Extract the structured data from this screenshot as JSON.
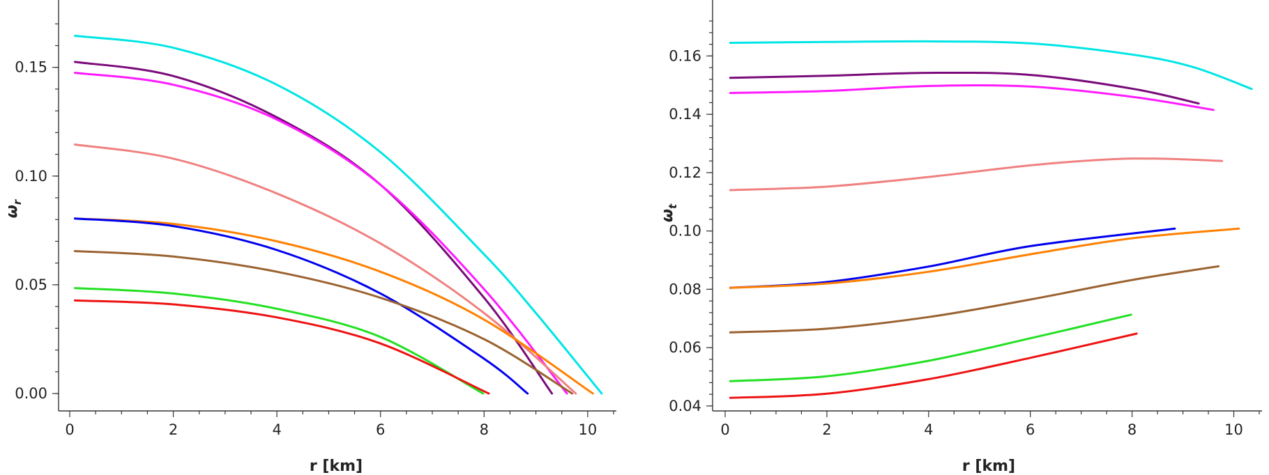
{
  "chart_data": [
    {
      "type": "line",
      "xlabel": "r [km]",
      "ylabel": "ω_r",
      "ylabel_main": "ω",
      "ylabel_sub": "r",
      "xlim": [
        0,
        10.5
      ],
      "ylim": [
        -0.008,
        0.172
      ],
      "xticks": [
        0,
        2,
        4,
        6,
        8,
        10
      ],
      "xtick_labels": [
        "0",
        "2",
        "4",
        "6",
        "8",
        "10"
      ],
      "yticks": [
        0.0,
        0.05,
        0.1,
        0.15
      ],
      "ytick_labels": [
        "0.00",
        "0.05",
        "0.10",
        "0.15"
      ],
      "grid": false,
      "legend": "none",
      "series": [
        {
          "color": "#00e5e5",
          "x": [
            0.1,
            2,
            4,
            6,
            8,
            9,
            10.27
          ],
          "y": [
            0.1645,
            0.159,
            0.142,
            0.111,
            0.064,
            0.037,
            0.0
          ]
        },
        {
          "color": "#7a0a7a",
          "x": [
            0.1,
            2,
            4,
            6,
            8,
            9.31
          ],
          "y": [
            0.1525,
            0.146,
            0.127,
            0.096,
            0.044,
            0.0
          ]
        },
        {
          "color": "#ff1aff",
          "x": [
            0.1,
            2,
            4,
            6,
            8,
            9.6
          ],
          "y": [
            0.1475,
            0.142,
            0.126,
            0.096,
            0.048,
            0.0
          ]
        },
        {
          "color": "#f08080",
          "x": [
            0.1,
            2,
            4,
            6,
            8,
            9.77
          ],
          "y": [
            0.1145,
            0.108,
            0.092,
            0.069,
            0.037,
            0.0
          ]
        },
        {
          "color": "#ff8000",
          "x": [
            0.1,
            2,
            4,
            6,
            8,
            10.1
          ],
          "y": [
            0.0805,
            0.078,
            0.07,
            0.056,
            0.034,
            0.0
          ]
        },
        {
          "color": "#0000ee",
          "x": [
            0.1,
            2,
            4,
            6,
            8,
            8.84
          ],
          "y": [
            0.0805,
            0.077,
            0.066,
            0.046,
            0.016,
            0.0
          ]
        },
        {
          "color": "#9a6230",
          "x": [
            0.1,
            2,
            4,
            6,
            8,
            9.7
          ],
          "y": [
            0.0655,
            0.063,
            0.056,
            0.044,
            0.025,
            0.0
          ]
        },
        {
          "color": "#22e022",
          "x": [
            0.1,
            2,
            4,
            6,
            7.98
          ],
          "y": [
            0.0485,
            0.046,
            0.039,
            0.026,
            0.0
          ]
        },
        {
          "color": "#ee1111",
          "x": [
            0.1,
            2,
            4,
            6,
            8.09
          ],
          "y": [
            0.0428,
            0.041,
            0.035,
            0.023,
            0.0
          ]
        }
      ]
    },
    {
      "type": "line",
      "xlabel": "r [km]",
      "ylabel": "ω_t",
      "ylabel_main": "ω",
      "ylabel_sub": "t",
      "xlim": [
        0,
        10.5
      ],
      "ylim": [
        0.0383,
        0.1725
      ],
      "xticks": [
        0,
        2,
        4,
        6,
        8,
        10
      ],
      "xtick_labels": [
        "0",
        "2",
        "4",
        "6",
        "8",
        "10"
      ],
      "yticks": [
        0.04,
        0.06,
        0.08,
        0.1,
        0.12,
        0.14,
        0.16
      ],
      "ytick_labels": [
        "0.04",
        "0.06",
        "0.08",
        "0.10",
        "0.12",
        "0.14",
        "0.16"
      ],
      "grid": false,
      "legend": "none",
      "series": [
        {
          "color": "#00e5e5",
          "x": [
            0.1,
            2,
            4,
            6,
            8,
            9.2,
            10.35
          ],
          "y": [
            0.1645,
            0.1648,
            0.165,
            0.1643,
            0.1605,
            0.1562,
            0.1487
          ]
        },
        {
          "color": "#7a0a7a",
          "x": [
            0.1,
            2,
            4,
            6,
            8,
            9.31
          ],
          "y": [
            0.1525,
            0.1532,
            0.1542,
            0.1535,
            0.1488,
            0.1437
          ]
        },
        {
          "color": "#ff1aff",
          "x": [
            0.1,
            2,
            4,
            6,
            8,
            9.6
          ],
          "y": [
            0.1473,
            0.148,
            0.1497,
            0.1495,
            0.146,
            0.1415
          ]
        },
        {
          "color": "#f08080",
          "x": [
            0.1,
            2,
            4,
            6,
            7.5,
            8.5,
            9.77
          ],
          "y": [
            0.114,
            0.1152,
            0.1185,
            0.1225,
            0.1245,
            0.1248,
            0.124
          ]
        },
        {
          "color": "#0000ee",
          "x": [
            0.1,
            2,
            4,
            6,
            8.84
          ],
          "y": [
            0.0805,
            0.0825,
            0.0878,
            0.0948,
            0.1008
          ]
        },
        {
          "color": "#ff8000",
          "x": [
            0.1,
            2,
            4,
            6,
            8,
            10.1
          ],
          "y": [
            0.0805,
            0.082,
            0.086,
            0.092,
            0.0975,
            0.1008
          ]
        },
        {
          "color": "#9a6230",
          "x": [
            0.1,
            2,
            4,
            6,
            8,
            9.7
          ],
          "y": [
            0.0652,
            0.0665,
            0.0705,
            0.0765,
            0.0832,
            0.0879
          ]
        },
        {
          "color": "#22e022",
          "x": [
            0.1,
            2,
            4,
            6,
            7.98
          ],
          "y": [
            0.0485,
            0.0502,
            0.0555,
            0.0632,
            0.0713
          ]
        },
        {
          "color": "#ee1111",
          "x": [
            0.1,
            2,
            4,
            6,
            8.09
          ],
          "y": [
            0.0428,
            0.0442,
            0.0492,
            0.0565,
            0.0648
          ]
        }
      ]
    }
  ]
}
